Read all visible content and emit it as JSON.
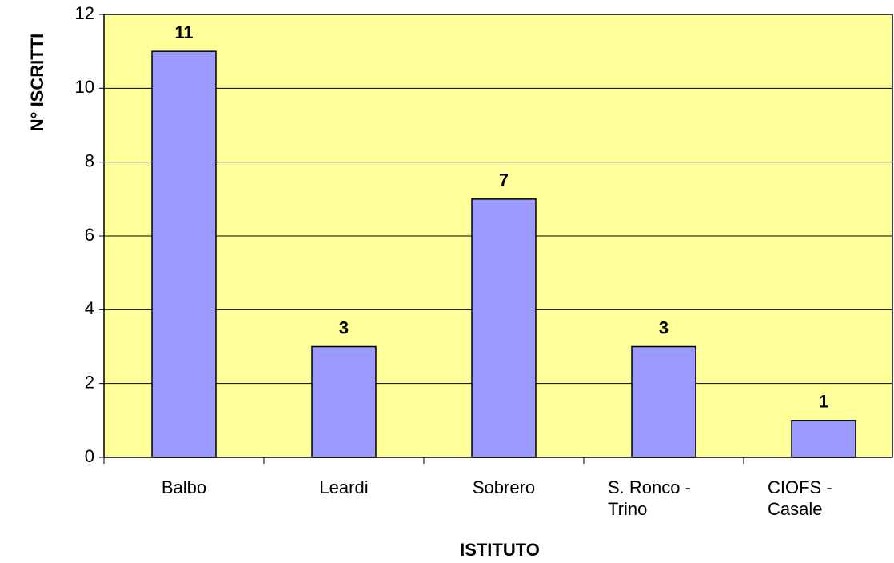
{
  "chart_data": {
    "type": "bar",
    "x_label": "ISTITUTO",
    "y_label": "N° ISCRITTI",
    "categories": [
      "Balbo",
      "Leardi",
      "Sobrero",
      "S. Ronco - Trino",
      "CIOFS - Casale"
    ],
    "values": [
      11,
      3,
      7,
      3,
      1
    ],
    "color": "#9999ff",
    "background": "#ffff99",
    "ylim": [
      0,
      12
    ],
    "yticks": [
      0,
      2,
      4,
      6,
      8,
      10,
      12
    ],
    "grid": true
  }
}
